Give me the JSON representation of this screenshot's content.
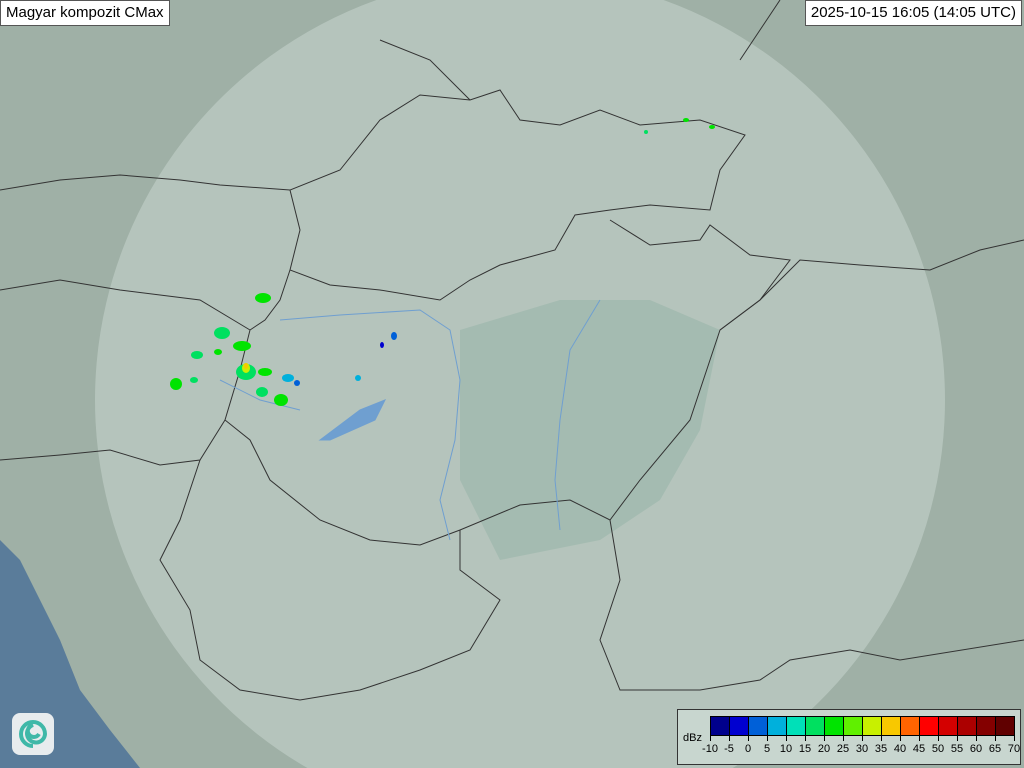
{
  "title": "Magyar kompozit  CMax",
  "timestamp": "2025-10-15 16:05 (14:05 UTC)",
  "legend": {
    "unit": "dBz",
    "ticks": [
      "-10",
      "-5",
      "0",
      "5",
      "10",
      "15",
      "20",
      "25",
      "30",
      "35",
      "40",
      "45",
      "50",
      "55",
      "60",
      "65",
      "70"
    ],
    "colors": [
      "#00008c",
      "#0000d0",
      "#0060d8",
      "#00b0dc",
      "#00e0b8",
      "#00e060",
      "#00e400",
      "#60f000",
      "#c8f000",
      "#f8c800",
      "#ff6400",
      "#ff0000",
      "#d40000",
      "#ac0000",
      "#840000",
      "#600000"
    ]
  },
  "map": {
    "land_color": "#9fb0a6",
    "radar_coverage_color": "#c4d2cc",
    "sea_color": "#5a7c9a",
    "border_color": "#333333",
    "river_color": "#6f9fd0"
  },
  "logo_icon": "swirl-logo-icon"
}
